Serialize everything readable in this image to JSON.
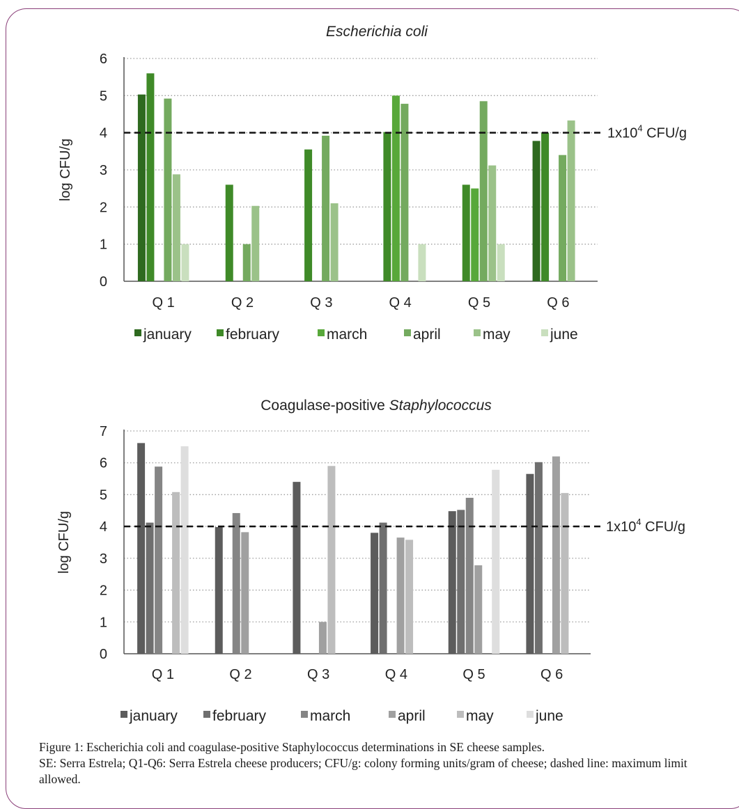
{
  "chart_data": [
    {
      "type": "bar",
      "title_parts": [
        {
          "text": "Escherichia coli",
          "italic": true
        }
      ],
      "ylabel": "log CFU/g",
      "ylim": [
        0,
        6
      ],
      "yticks": [
        "0",
        "1",
        "2",
        "3",
        "4",
        "5",
        "6"
      ],
      "categories": [
        "Q 1",
        "Q 2",
        "Q 3",
        "Q 4",
        "Q 5",
        "Q 6"
      ],
      "series": [
        {
          "name": "january",
          "color": "#2e6a1f",
          "values": [
            5.03,
            null,
            null,
            null,
            null,
            3.78
          ]
        },
        {
          "name": "february",
          "color": "#3f8a28",
          "values": [
            5.6,
            2.6,
            3.55,
            4.02,
            2.6,
            4.0
          ]
        },
        {
          "name": "march",
          "color": "#58a83a",
          "values": [
            null,
            null,
            null,
            5.0,
            2.5,
            null
          ]
        },
        {
          "name": "april",
          "color": "#74aa5f",
          "values": [
            4.92,
            1.0,
            3.92,
            4.78,
            4.85,
            3.4
          ]
        },
        {
          "name": "may",
          "color": "#9bc289",
          "values": [
            2.88,
            2.03,
            2.1,
            null,
            3.12,
            4.33
          ]
        },
        {
          "name": "june",
          "color": "#c9dfbe",
          "values": [
            1.0,
            null,
            null,
            1.0,
            1.0,
            null
          ]
        }
      ],
      "reference_line": {
        "value": 4,
        "style": "dashed",
        "label_base": "1x10",
        "label_sup": "4",
        "label_unit": " CFU/g"
      },
      "grid": "horizontal dotted",
      "legend_position": "bottom"
    },
    {
      "type": "bar",
      "title_parts": [
        {
          "text": "Coagulase-positive ",
          "italic": false
        },
        {
          "text": "Staphylococcus",
          "italic": true
        }
      ],
      "ylabel": "log CFU/g",
      "ylim": [
        0,
        7
      ],
      "yticks": [
        "0",
        "1",
        "2",
        "3",
        "4",
        "5",
        "6",
        "7"
      ],
      "categories": [
        "Q 1",
        "Q 2",
        "Q 3",
        "Q 4",
        "Q 5",
        "Q 6"
      ],
      "series": [
        {
          "name": "january",
          "color": "#5c5c5c",
          "values": [
            6.62,
            3.98,
            5.4,
            3.8,
            4.48,
            5.65
          ]
        },
        {
          "name": "february",
          "color": "#6f6f6f",
          "values": [
            4.12,
            null,
            null,
            4.12,
            4.52,
            6.02
          ]
        },
        {
          "name": "march",
          "color": "#858585",
          "values": [
            5.88,
            4.42,
            null,
            null,
            4.9,
            null
          ]
        },
        {
          "name": "april",
          "color": "#a0a0a0",
          "values": [
            null,
            3.82,
            1.0,
            3.65,
            2.78,
            6.2
          ]
        },
        {
          "name": "may",
          "color": "#bdbdbd",
          "values": [
            5.08,
            null,
            5.9,
            3.58,
            null,
            5.05
          ]
        },
        {
          "name": "june",
          "color": "#dedede",
          "values": [
            6.52,
            null,
            null,
            null,
            5.78,
            null
          ]
        }
      ],
      "reference_line": {
        "value": 4,
        "style": "dashed",
        "label_base": "1x10",
        "label_sup": "4",
        "label_unit": " CFU/g"
      },
      "grid": "horizontal dotted",
      "legend_position": "bottom"
    }
  ],
  "caption": {
    "line1": "Figure 1: Escherichia coli and coagulase-positive Staphylococcus determinations in SE cheese samples.",
    "line2": "SE: Serra Estrela; Q1-Q6: Serra Estrela cheese producers; CFU/g: colony forming units/gram of cheese; dashed line: maximum limit allowed."
  }
}
